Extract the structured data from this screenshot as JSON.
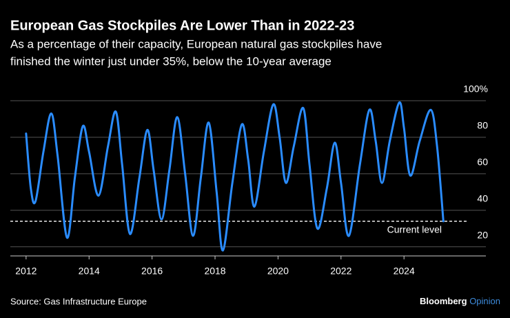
{
  "chart_data": {
    "type": "line",
    "title": "European Gas Stockpiles Are Lower Than in 2022-23",
    "subtitle": [
      "As a percentage of their capacity, European natural gas stockpiles have",
      "finished the winter just under 35%, below the 10-year average"
    ],
    "source": "Source: Gas Infrastructure Europe",
    "brand": "Bloomberg",
    "brand_sub": "Opinion",
    "x": [
      2012.0,
      2012.15,
      2012.3,
      2012.55,
      2012.8,
      2013.0,
      2013.3,
      2013.55,
      2013.8,
      2014.0,
      2014.3,
      2014.6,
      2014.85,
      2015.05,
      2015.3,
      2015.6,
      2015.85,
      2016.05,
      2016.3,
      2016.55,
      2016.8,
      2017.05,
      2017.3,
      2017.55,
      2017.8,
      2018.05,
      2018.25,
      2018.55,
      2018.85,
      2019.05,
      2019.25,
      2019.55,
      2019.85,
      2020.05,
      2020.25,
      2020.5,
      2020.8,
      2021.0,
      2021.25,
      2021.55,
      2021.8,
      2022.0,
      2022.25,
      2022.6,
      2022.9,
      2023.1,
      2023.3,
      2023.55,
      2023.85,
      2024.0,
      2024.2,
      2024.5,
      2024.85,
      2025.05,
      2025.25
    ],
    "series": [
      {
        "color": "#2a8cff",
        "values": [
          82,
          52,
          45,
          72,
          93,
          70,
          25,
          58,
          86,
          72,
          48,
          75,
          94,
          65,
          27,
          58,
          84,
          62,
          35,
          62,
          91,
          60,
          26,
          58,
          88,
          50,
          18,
          55,
          87,
          68,
          42,
          72,
          98,
          80,
          55,
          75,
          96,
          65,
          30,
          52,
          77,
          55,
          26,
          65,
          95,
          78,
          55,
          78,
          99,
          85,
          59,
          78,
          95,
          75,
          34
        ]
      }
    ],
    "reference_line": {
      "value": 34,
      "label": "Current level"
    },
    "xlim": [
      2011.5,
      2026.6
    ],
    "xticks": [
      2012,
      2014,
      2016,
      2018,
      2020,
      2022,
      2024
    ],
    "ylim": [
      15,
      100
    ],
    "yticks": [
      20,
      40,
      60,
      80,
      {
        "value": 100,
        "label": "100%"
      }
    ],
    "grid": true
  }
}
